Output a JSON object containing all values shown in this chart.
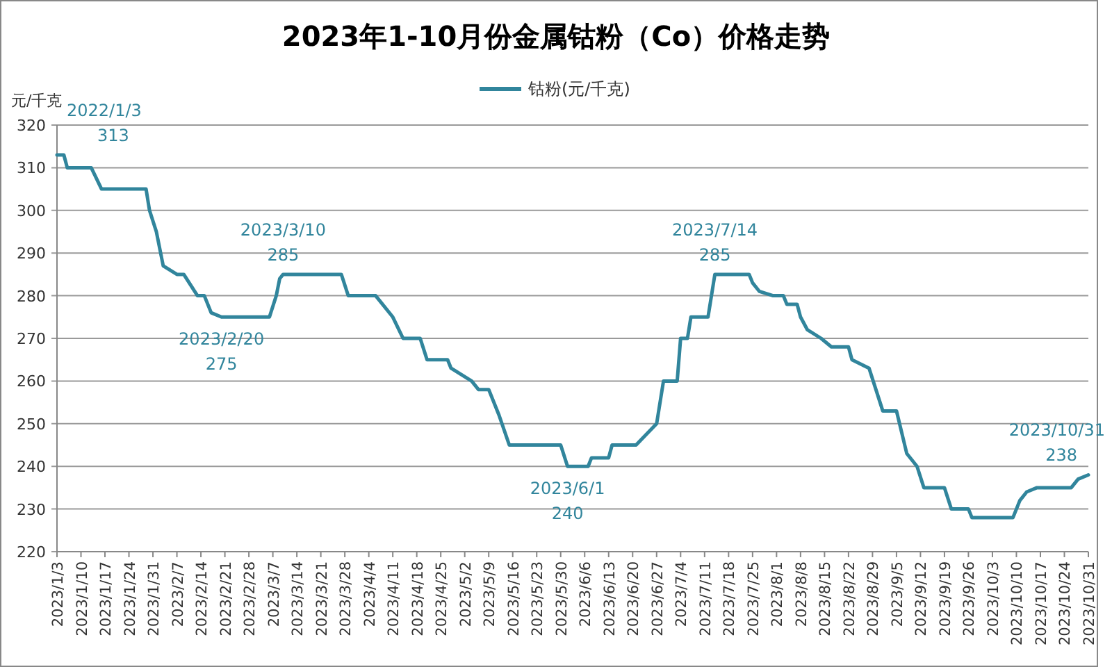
{
  "chart_data": {
    "type": "line",
    "title": "2023年1-10月份金属钴粉（Co）价格走势",
    "ylabel": "元/千克",
    "series": [
      {
        "name": "钴粉(元/千克)",
        "color": "#31859c",
        "x": [
          "2023-01-03",
          "2023-01-05",
          "2023-01-06",
          "2023-01-13",
          "2023-01-16",
          "2023-01-29",
          "2023-01-30",
          "2023-02-01",
          "2023-02-03",
          "2023-02-07",
          "2023-02-09",
          "2023-02-13",
          "2023-02-15",
          "2023-02-17",
          "2023-02-20",
          "2023-03-06",
          "2023-03-08",
          "2023-03-09",
          "2023-03-10",
          "2023-03-27",
          "2023-03-29",
          "2023-04-06",
          "2023-04-11",
          "2023-04-14",
          "2023-04-19",
          "2023-04-21",
          "2023-04-27",
          "2023-04-28",
          "2023-05-04",
          "2023-05-06",
          "2023-05-09",
          "2023-05-12",
          "2023-05-15",
          "2023-05-30",
          "2023-06-01",
          "2023-06-07",
          "2023-06-08",
          "2023-06-13",
          "2023-06-14",
          "2023-06-21",
          "2023-06-27",
          "2023-06-29",
          "2023-07-03",
          "2023-07-04",
          "2023-07-06",
          "2023-07-07",
          "2023-07-12",
          "2023-07-14",
          "2023-07-24",
          "2023-07-25",
          "2023-07-27",
          "2023-07-31",
          "2023-08-03",
          "2023-08-04",
          "2023-08-07",
          "2023-08-08",
          "2023-08-10",
          "2023-08-14",
          "2023-08-17",
          "2023-08-22",
          "2023-08-23",
          "2023-08-28",
          "2023-09-01",
          "2023-09-05",
          "2023-09-08",
          "2023-09-11",
          "2023-09-13",
          "2023-09-19",
          "2023-09-21",
          "2023-09-26",
          "2023-09-27",
          "2023-10-09",
          "2023-10-11",
          "2023-10-13",
          "2023-10-16",
          "2023-10-26",
          "2023-10-28",
          "2023-10-31"
        ],
        "values": [
          313,
          313,
          310,
          310,
          305,
          305,
          300,
          295,
          287,
          285,
          285,
          280,
          280,
          276,
          275,
          275,
          280,
          284,
          285,
          285,
          280,
          280,
          275,
          270,
          270,
          265,
          265,
          263,
          260,
          258,
          258,
          252,
          245,
          245,
          240,
          240,
          242,
          242,
          245,
          245,
          250,
          260,
          260,
          270,
          270,
          275,
          275,
          285,
          285,
          283,
          281,
          280,
          280,
          278,
          278,
          275,
          272,
          270,
          268,
          268,
          265,
          263,
          253,
          253,
          243,
          240,
          235,
          235,
          230,
          230,
          228,
          228,
          232,
          234,
          235,
          235,
          237,
          238
        ]
      }
    ],
    "xlim": [
      "2023-01-03",
      "2023-10-31"
    ],
    "xticks": [
      {
        "value": "2023-01-03",
        "label": "2023/1/3"
      },
      {
        "value": "2023-01-10",
        "label": "2023/1/10"
      },
      {
        "value": "2023-01-17",
        "label": "2023/1/17"
      },
      {
        "value": "2023-01-24",
        "label": "2023/1/24"
      },
      {
        "value": "2023-01-31",
        "label": "2023/1/31"
      },
      {
        "value": "2023-02-07",
        "label": "2023/2/7"
      },
      {
        "value": "2023-02-14",
        "label": "2023/2/14"
      },
      {
        "value": "2023-02-21",
        "label": "2023/2/21"
      },
      {
        "value": "2023-02-28",
        "label": "2023/2/28"
      },
      {
        "value": "2023-03-07",
        "label": "2023/3/7"
      },
      {
        "value": "2023-03-14",
        "label": "2023/3/14"
      },
      {
        "value": "2023-03-21",
        "label": "2023/3/21"
      },
      {
        "value": "2023-03-28",
        "label": "2023/3/28"
      },
      {
        "value": "2023-04-04",
        "label": "2023/4/4"
      },
      {
        "value": "2023-04-11",
        "label": "2023/4/11"
      },
      {
        "value": "2023-04-18",
        "label": "2023/4/18"
      },
      {
        "value": "2023-04-25",
        "label": "2023/4/25"
      },
      {
        "value": "2023-05-02",
        "label": "2023/5/2"
      },
      {
        "value": "2023-05-09",
        "label": "2023/5/9"
      },
      {
        "value": "2023-05-16",
        "label": "2023/5/16"
      },
      {
        "value": "2023-05-23",
        "label": "2023/5/23"
      },
      {
        "value": "2023-05-30",
        "label": "2023/5/30"
      },
      {
        "value": "2023-06-06",
        "label": "2023/6/6"
      },
      {
        "value": "2023-06-13",
        "label": "2023/6/13"
      },
      {
        "value": "2023-06-20",
        "label": "2023/6/20"
      },
      {
        "value": "2023-06-27",
        "label": "2023/6/27"
      },
      {
        "value": "2023-07-04",
        "label": "2023/7/4"
      },
      {
        "value": "2023-07-11",
        "label": "2023/7/11"
      },
      {
        "value": "2023-07-18",
        "label": "2023/7/18"
      },
      {
        "value": "2023-07-25",
        "label": "2023/7/25"
      },
      {
        "value": "2023-08-01",
        "label": "2023/8/1"
      },
      {
        "value": "2023-08-08",
        "label": "2023/8/8"
      },
      {
        "value": "2023-08-15",
        "label": "2023/8/15"
      },
      {
        "value": "2023-08-22",
        "label": "2023/8/22"
      },
      {
        "value": "2023-08-29",
        "label": "2023/8/29"
      },
      {
        "value": "2023-09-05",
        "label": "2023/9/5"
      },
      {
        "value": "2023-09-12",
        "label": "2023/9/12"
      },
      {
        "value": "2023-09-19",
        "label": "2023/9/19"
      },
      {
        "value": "2023-09-26",
        "label": "2023/9/26"
      },
      {
        "value": "2023-10-03",
        "label": "2023/10/3"
      },
      {
        "value": "2023-10-10",
        "label": "2023/10/10"
      },
      {
        "value": "2023-10-17",
        "label": "2023/10/17"
      },
      {
        "value": "2023-10-24",
        "label": "2023/10/24"
      },
      {
        "value": "2023-10-31",
        "label": "2023/10/31"
      }
    ],
    "ylim": [
      220,
      320
    ],
    "yticks": [
      220,
      230,
      240,
      250,
      260,
      270,
      280,
      290,
      300,
      310,
      320
    ],
    "grid": "y",
    "legend": "top",
    "line_style": "solid",
    "annotations": [
      {
        "text": "2022/1/3\n313",
        "x": "2023-01-03",
        "y": 313
      },
      {
        "text": "2023/2/20\n275",
        "x": "2023-02-20",
        "y": 275
      },
      {
        "text": "2023/3/10\n285",
        "x": "2023-03-10",
        "y": 285
      },
      {
        "text": "2023/6/1\n240",
        "x": "2023-06-01",
        "y": 240
      },
      {
        "text": "2023/7/14\n285",
        "x": "2023-07-14",
        "y": 285
      },
      {
        "text": "2023/10/31\n238",
        "x": "2023-10-31",
        "y": 238
      }
    ]
  }
}
